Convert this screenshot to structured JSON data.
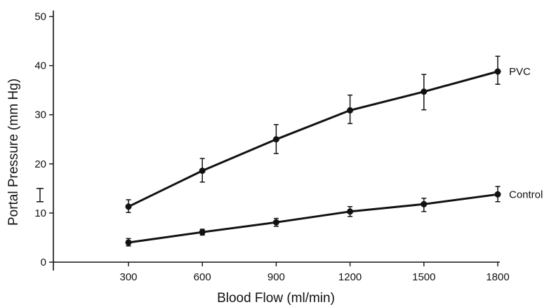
{
  "chart_data": {
    "type": "line",
    "title": "",
    "xlabel": "Blood Flow (ml/min)",
    "ylabel": "Portal Pressure (mm Hg)",
    "x": [
      300,
      600,
      900,
      1200,
      1500,
      1800
    ],
    "x_ticks": [
      "300",
      "600",
      "900",
      "1200",
      "1500",
      "1800"
    ],
    "y_ticks": [
      "0",
      "10",
      "20",
      "30",
      "40",
      "50"
    ],
    "ylim": [
      0,
      50
    ],
    "grid": false,
    "baseline_range": [
      12.3,
      15
    ],
    "series": [
      {
        "name": "PVC",
        "values": [
          11.3,
          18.6,
          25.0,
          30.9,
          34.7,
          38.8
        ],
        "err_low": [
          10.1,
          16.3,
          22.1,
          28.2,
          31.0,
          36.2
        ],
        "err_high": [
          12.7,
          21.1,
          28.0,
          34.0,
          38.2,
          41.9
        ],
        "color": "#111111"
      },
      {
        "name": "Control",
        "values": [
          4.0,
          6.1,
          8.1,
          10.3,
          11.8,
          13.8
        ],
        "err_low": [
          3.3,
          5.5,
          7.3,
          9.3,
          10.3,
          12.3
        ],
        "err_high": [
          4.8,
          6.7,
          8.9,
          11.3,
          13.0,
          15.4
        ],
        "color": "#111111"
      }
    ]
  }
}
